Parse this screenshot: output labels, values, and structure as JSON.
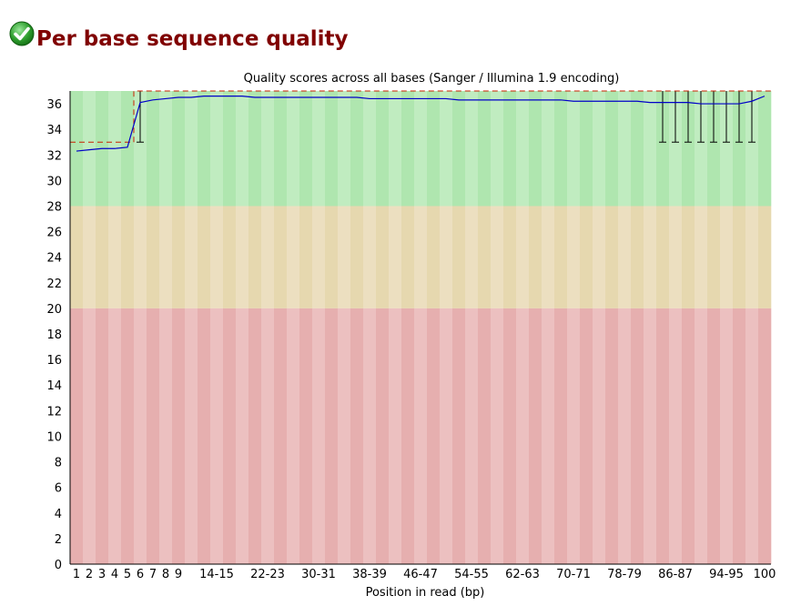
{
  "module": {
    "title": "Per base sequence quality",
    "status_icon": "check-circle-icon",
    "status_color": "#2e9e2e",
    "title_color": "#800000"
  },
  "chart_data": {
    "type": "line",
    "title": "Quality scores across all bases (Sanger / Illumina 1.9 encoding)",
    "xlabel": "Position in read (bp)",
    "ylabel": "",
    "ylim": [
      0,
      37
    ],
    "yticks": [
      0,
      2,
      4,
      6,
      8,
      10,
      12,
      14,
      16,
      18,
      20,
      22,
      24,
      26,
      28,
      30,
      32,
      34,
      36
    ],
    "categories": [
      "1",
      "2",
      "3",
      "4",
      "5",
      "6",
      "7",
      "8",
      "9",
      "10-11",
      "12-13",
      "14-15",
      "16-17",
      "18-19",
      "20-21",
      "22-23",
      "24-25",
      "26-27",
      "28-29",
      "30-31",
      "32-33",
      "34-35",
      "36-37",
      "38-39",
      "40-41",
      "42-43",
      "44-45",
      "46-47",
      "48-49",
      "50-51",
      "52-53",
      "54-55",
      "56-57",
      "58-59",
      "60-61",
      "62-63",
      "64-65",
      "66-67",
      "68-69",
      "70-71",
      "72-73",
      "74-75",
      "76-77",
      "78-79",
      "80-81",
      "82-83",
      "84-85",
      "86-87",
      "88-89",
      "90-91",
      "92-93",
      "94-95",
      "96-97",
      "98-99",
      "100"
    ],
    "x_tick_labels": [
      "1",
      "2",
      "3",
      "4",
      "5",
      "6",
      "7",
      "8",
      "9",
      "14-15",
      "22-23",
      "30-31",
      "38-39",
      "46-47",
      "54-55",
      "62-63",
      "70-71",
      "78-79",
      "86-87",
      "94-95",
      "100"
    ],
    "bands": [
      {
        "from": 28,
        "to": 37,
        "colors": [
          "#afe6af",
          "#c0ecc0"
        ]
      },
      {
        "from": 20,
        "to": 28,
        "colors": [
          "#e6d8af",
          "#ecdfc0"
        ]
      },
      {
        "from": 0,
        "to": 20,
        "colors": [
          "#e6afaf",
          "#ecc0c0"
        ]
      }
    ],
    "series": [
      {
        "color": "#0000c8",
        "values": [
          32.3,
          32.4,
          32.5,
          32.5,
          32.6,
          36.1,
          36.3,
          36.4,
          36.5,
          36.5,
          36.6,
          36.6,
          36.6,
          36.6,
          36.5,
          36.5,
          36.5,
          36.5,
          36.5,
          36.5,
          36.5,
          36.5,
          36.5,
          36.4,
          36.4,
          36.4,
          36.4,
          36.4,
          36.4,
          36.4,
          36.3,
          36.3,
          36.3,
          36.3,
          36.3,
          36.3,
          36.3,
          36.3,
          36.3,
          36.2,
          36.2,
          36.2,
          36.2,
          36.2,
          36.2,
          36.1,
          36.1,
          36.1,
          36.1,
          36.0,
          36.0,
          36.0,
          36.0,
          36.2,
          36.6
        ]
      }
    ],
    "quartiles": {
      "upper_dashed_color": "#c82000",
      "upper": [
        33,
        33,
        33,
        33,
        33,
        37,
        37,
        37,
        37,
        37,
        37,
        37,
        37,
        37,
        37,
        37,
        37,
        37,
        37,
        37,
        37,
        37,
        37,
        37,
        37,
        37,
        37,
        37,
        37,
        37,
        37,
        37,
        37,
        37,
        37,
        37,
        37,
        37,
        37,
        37,
        37,
        37,
        37,
        37,
        37,
        37,
        37,
        37,
        37,
        37,
        37,
        37,
        37,
        37,
        37
      ],
      "whisker_low": [
        null,
        null,
        null,
        null,
        null,
        33,
        null,
        null,
        null,
        null,
        null,
        null,
        null,
        null,
        null,
        null,
        null,
        null,
        null,
        null,
        null,
        null,
        null,
        null,
        null,
        null,
        null,
        null,
        null,
        null,
        null,
        null,
        null,
        null,
        null,
        null,
        null,
        null,
        null,
        null,
        null,
        null,
        null,
        null,
        null,
        null,
        33,
        33,
        33,
        33,
        33,
        33,
        33,
        33,
        null
      ],
      "whisker_high": [
        null,
        null,
        null,
        null,
        null,
        37,
        null,
        null,
        null,
        null,
        null,
        null,
        null,
        null,
        null,
        null,
        null,
        null,
        null,
        null,
        null,
        null,
        null,
        null,
        null,
        null,
        null,
        null,
        null,
        null,
        null,
        null,
        null,
        null,
        null,
        null,
        null,
        null,
        null,
        null,
        null,
        null,
        null,
        null,
        null,
        null,
        37,
        37,
        37,
        37,
        37,
        37,
        37,
        37,
        null
      ]
    },
    "grid": false,
    "legend": "none"
  }
}
